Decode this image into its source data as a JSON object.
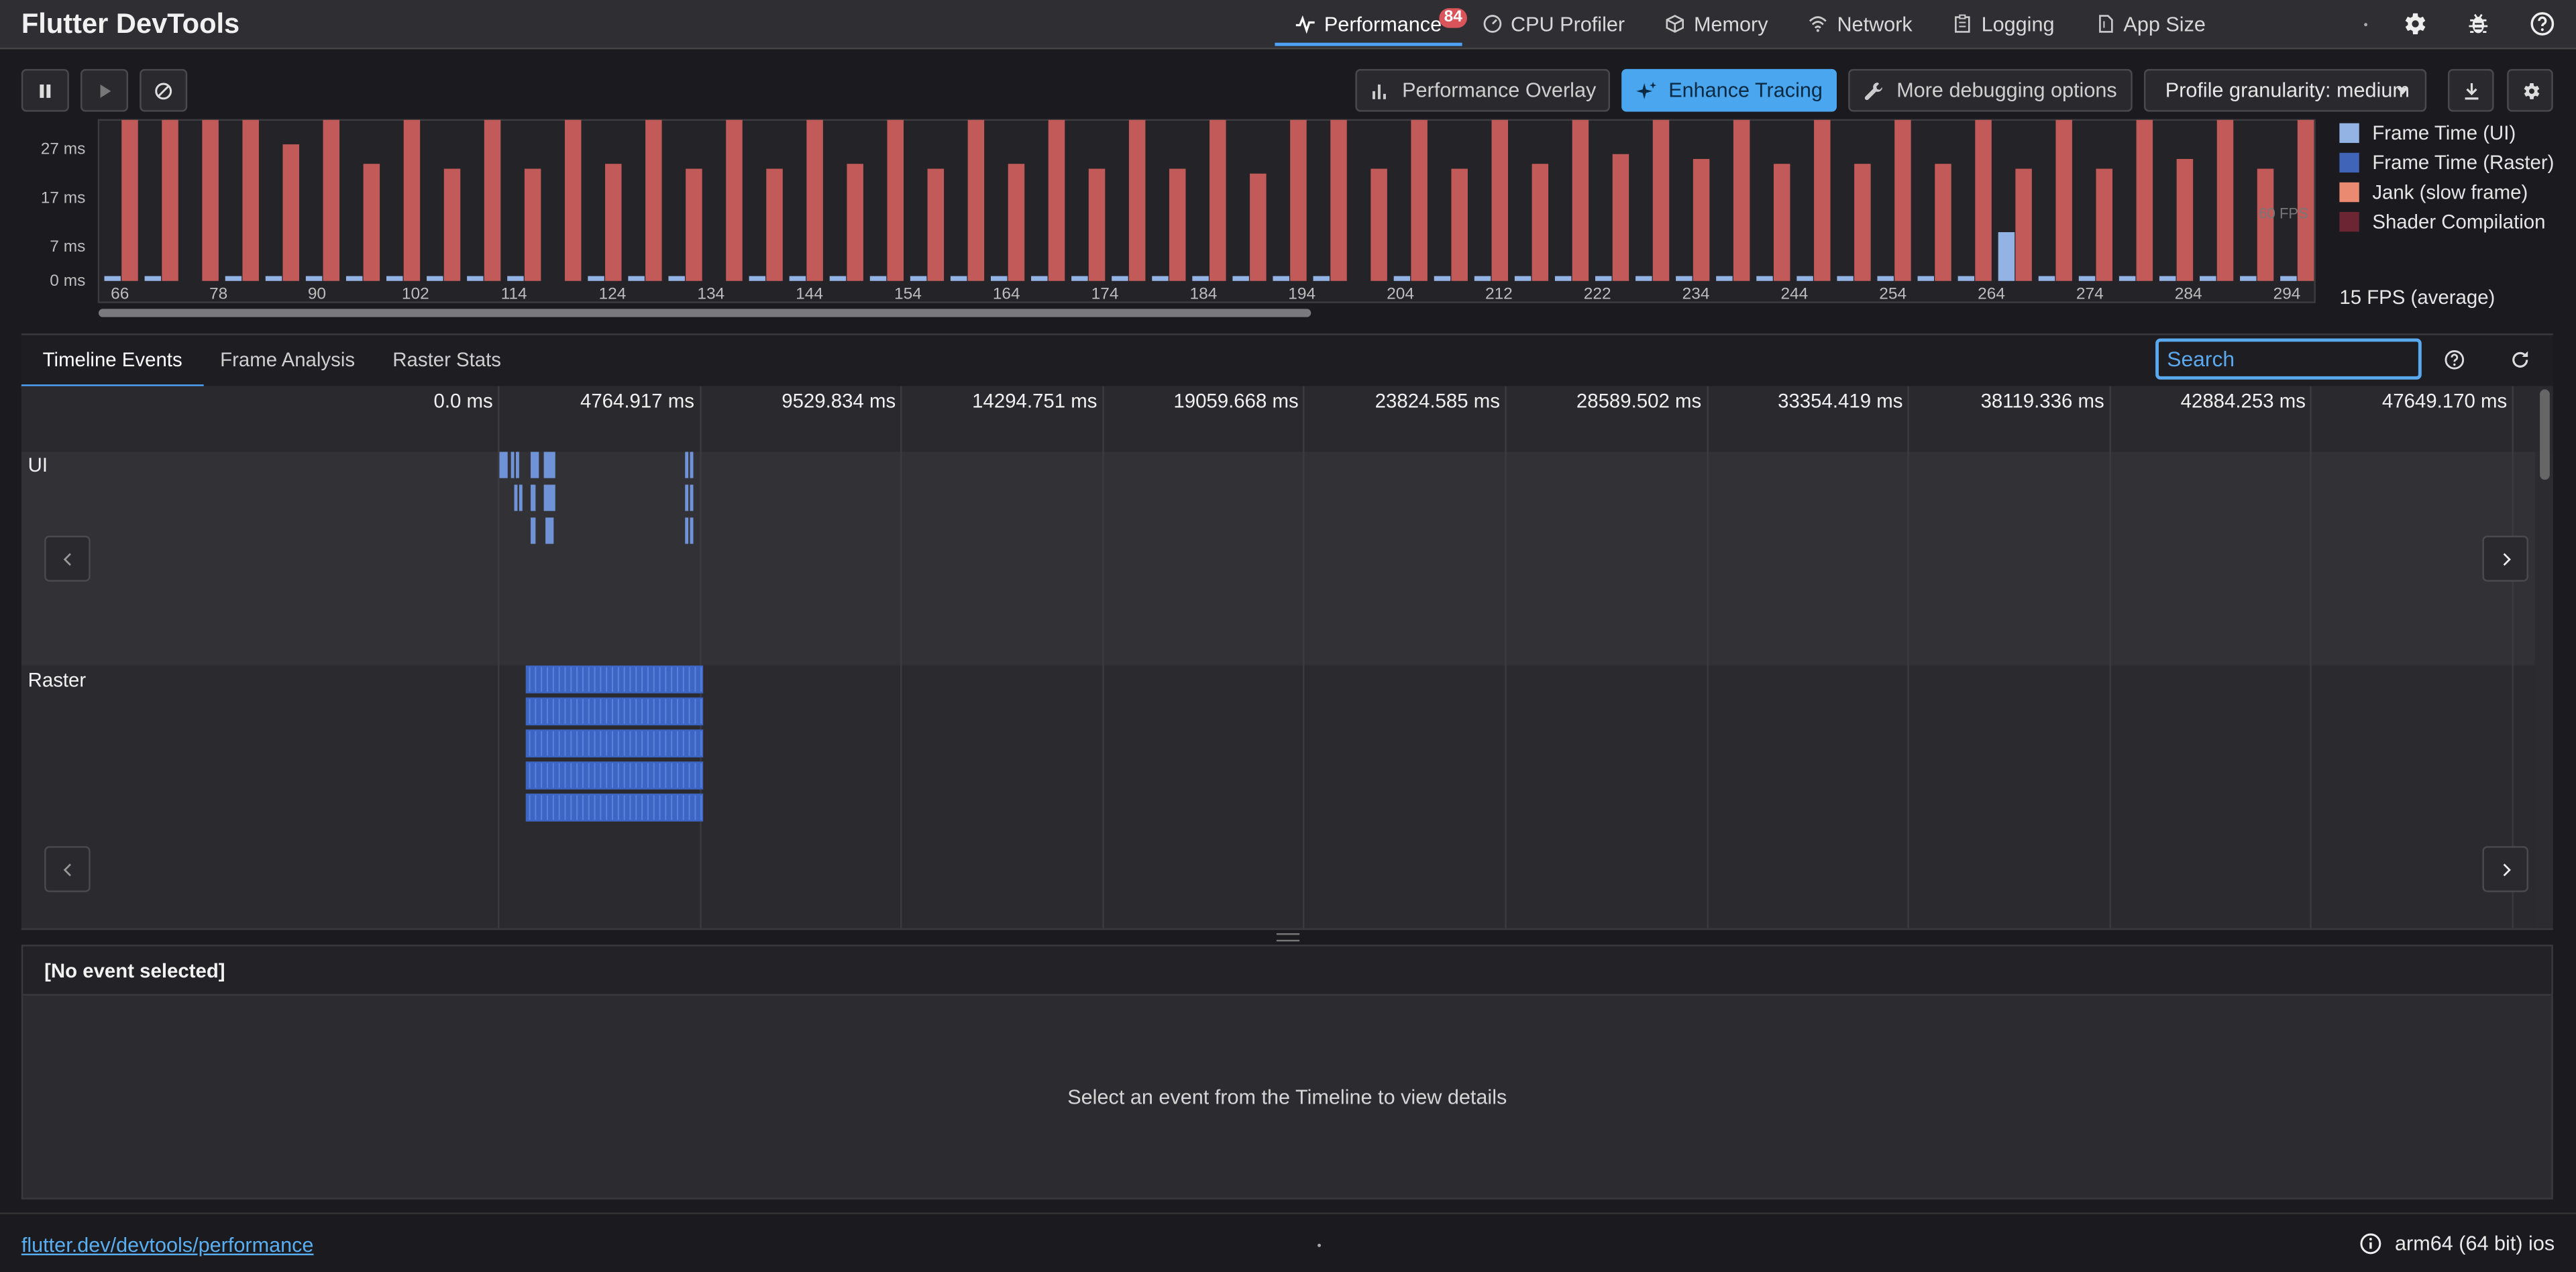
{
  "app": {
    "title": "Flutter DevTools"
  },
  "nav": {
    "tabs": [
      {
        "label": "Performance",
        "badge": "84",
        "icon": "performance-icon"
      },
      {
        "label": "CPU Profiler",
        "icon": "cpu-profiler-icon"
      },
      {
        "label": "Memory",
        "icon": "memory-icon"
      },
      {
        "label": "Network",
        "icon": "network-icon"
      },
      {
        "label": "Logging",
        "icon": "logging-icon"
      },
      {
        "label": "App Size",
        "icon": "app-size-icon"
      }
    ],
    "right_icons": [
      "settings-icon",
      "bug-report-icon",
      "help-icon"
    ]
  },
  "controls": {
    "performance_overlay": "Performance Overlay",
    "enhance_tracing": "Enhance Tracing",
    "more_debugging": "More debugging options",
    "profile_granularity": "Profile granularity: medium"
  },
  "chart_data": {
    "type": "bar",
    "y_ticks": [
      "27 ms",
      "17 ms",
      "7 ms",
      "0 ms"
    ],
    "y_tick_values": [
      27,
      17,
      7,
      0
    ],
    "ylim": [
      0,
      33
    ],
    "fps_line_label": "60 FPS",
    "x_labels": [
      "66",
      "78",
      "90",
      "102",
      "114",
      "124",
      "134",
      "144",
      "154",
      "164",
      "174",
      "184",
      "194",
      "204",
      "212",
      "222",
      "234",
      "244",
      "254",
      "264",
      "274",
      "284",
      "294"
    ],
    "series": [
      {
        "name": "Frame Time (UI)",
        "color": "#93b3e5",
        "values": [
          1,
          1,
          0,
          1,
          1,
          1,
          1,
          1,
          1,
          1,
          1,
          0,
          1,
          1,
          1,
          0,
          1,
          1,
          1,
          1,
          1,
          1,
          1,
          1,
          1,
          1,
          1,
          1,
          1,
          1,
          1,
          0,
          1,
          1,
          1,
          1,
          1,
          1,
          1,
          1,
          1,
          1,
          1,
          1,
          1,
          1,
          1,
          10,
          1,
          1,
          1,
          1,
          1,
          1,
          1
        ]
      },
      {
        "name": "Jank (slow frame)",
        "color": "#c25a5a",
        "values": [
          34,
          33,
          33,
          33,
          28,
          33,
          24,
          33,
          23,
          33,
          23,
          33,
          24,
          33,
          23,
          33,
          23,
          33,
          24,
          33,
          23,
          33,
          24,
          33,
          23,
          33,
          23,
          33,
          22,
          33,
          33,
          23,
          33,
          23,
          33,
          24,
          33,
          26,
          33,
          25,
          33,
          24,
          33,
          24,
          33,
          24,
          33,
          23,
          33,
          23,
          33,
          25,
          33,
          23,
          33
        ]
      }
    ],
    "legend": [
      {
        "label": "Frame Time (UI)",
        "color": "#93b3e5"
      },
      {
        "label": "Frame Time (Raster)",
        "color": "#3f64b8"
      },
      {
        "label": "Jank (slow frame)",
        "color": "#ea8a70"
      },
      {
        "label": "Shader Compilation",
        "color": "#6c2532"
      }
    ],
    "fps_average": "15 FPS (average)"
  },
  "panel": {
    "tabs": [
      "Timeline Events",
      "Frame Analysis",
      "Raster Stats"
    ],
    "search_placeholder": "Search"
  },
  "timeline": {
    "ticks": [
      "0.0 ms",
      "4764.917 ms",
      "9529.834 ms",
      "14294.751 ms",
      "19059.668 ms",
      "23824.585 ms",
      "28589.502 ms",
      "33354.419 ms",
      "38119.336 ms",
      "42884.253 ms",
      "47649.170 ms"
    ],
    "lanes": {
      "ui": "UI",
      "raster": "Raster"
    }
  },
  "details": {
    "title": "[No event selected]",
    "message": "Select an event from the Timeline to view details"
  },
  "footer": {
    "link": "flutter.dev/devtools/performance",
    "device": "arm64 (64 bit) ios"
  }
}
